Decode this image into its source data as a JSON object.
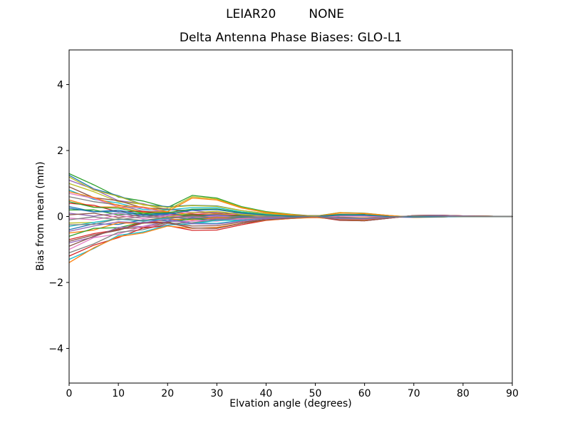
{
  "figure": {
    "suptitle_left": "LEIAR20",
    "suptitle_right": "NONE",
    "title": "Delta Antenna Phase Biases: GLO-L1",
    "xlabel": "Elvation angle (degrees)",
    "ylabel": "Bias from mean (mm)",
    "background_color": "#ffffff",
    "axis_color": "#000000"
  },
  "chart_data": {
    "type": "line",
    "title": "Delta Antenna Phase Biases: GLO-L1",
    "suptitle": "LEIAR20         NONE",
    "xlabel": "Elvation angle (degrees)",
    "ylabel": "Bias from mean (mm)",
    "xlim": [
      0,
      90
    ],
    "ylim": [
      -5.05,
      5.05
    ],
    "xticks": [
      0,
      10,
      20,
      30,
      40,
      50,
      60,
      70,
      80,
      90
    ],
    "yticks": [
      -4,
      -2,
      0,
      2,
      4
    ],
    "grid": false,
    "legend_position": "none",
    "x": [
      0,
      5,
      10,
      15,
      20,
      25,
      30,
      35,
      40,
      45,
      50,
      55,
      60,
      65,
      70,
      75,
      80,
      85,
      90
    ],
    "series": [
      {
        "color": "#2ca02c",
        "values": [
          1.3,
          0.96,
          0.59,
          0.47,
          0.27,
          0.64,
          0.56,
          0.3,
          0.15,
          0.07,
          0.01,
          0.12,
          0.1,
          0.03,
          -0.02,
          -0.02,
          0.01,
          0.01,
          0
        ]
      },
      {
        "color": "#1f77b4",
        "values": [
          1.25,
          0.84,
          0.63,
          0.36,
          0.3,
          0.34,
          0.32,
          0.18,
          0.09,
          0.04,
          0.02,
          0.07,
          0.06,
          0.01,
          -0.01,
          0,
          0,
          0,
          0
        ]
      },
      {
        "color": "#9467bd",
        "values": [
          1.1,
          0.83,
          0.48,
          0.39,
          0.2,
          0.19,
          0.09,
          0.11,
          0.04,
          0.05,
          0.02,
          0.05,
          0.03,
          0,
          -0.01,
          0,
          0.01,
          0,
          0
        ]
      },
      {
        "color": "#bcbd22",
        "values": [
          1.0,
          0.75,
          0.45,
          0.37,
          0.2,
          0.6,
          0.53,
          0.28,
          0.13,
          0.06,
          0,
          0.12,
          0.09,
          0.03,
          -0.02,
          -0.02,
          0.01,
          0.01,
          0
        ]
      },
      {
        "color": "#8c564b",
        "values": [
          0.9,
          0.57,
          0.48,
          0.26,
          0.23,
          0.12,
          0.12,
          0.05,
          0.06,
          0.02,
          0.03,
          -0.02,
          -0.04,
          -0.01,
          0.02,
          0.01,
          0,
          0,
          0
        ]
      },
      {
        "color": "#17becf",
        "values": [
          0.8,
          0.52,
          0.41,
          0.21,
          0.2,
          0.27,
          0.27,
          0.14,
          0.07,
          0.03,
          0.01,
          0.06,
          0.05,
          0.01,
          -0.02,
          -0.01,
          0,
          0,
          0
        ]
      },
      {
        "color": "#e377c2",
        "values": [
          0.7,
          0.55,
          0.29,
          0.26,
          0.11,
          0.13,
          0.05,
          0.08,
          0.02,
          0.04,
          0.01,
          0.04,
          0.03,
          0,
          -0.01,
          0,
          0.01,
          0,
          0
        ]
      },
      {
        "color": "#7f7f7f",
        "values": [
          0.6,
          0.45,
          0.35,
          0.16,
          0.15,
          -0.06,
          -0.11,
          -0.05,
          -0.01,
          0.01,
          0.03,
          -0.05,
          -0.07,
          -0.03,
          0.02,
          0.03,
          0.01,
          0,
          0
        ]
      },
      {
        "color": "#ff7f0e",
        "values": [
          0.5,
          0.29,
          0.29,
          0.13,
          0.14,
          0.06,
          0.08,
          0.02,
          0.04,
          0.01,
          0.02,
          -0.03,
          -0.04,
          -0.02,
          0.02,
          0.01,
          0,
          0,
          0
        ]
      },
      {
        "color": "#d62728",
        "values": [
          0.4,
          0.34,
          0.14,
          0.16,
          0.05,
          0.08,
          0.01,
          0.05,
          0,
          0.02,
          0,
          0.04,
          0.03,
          -0.01,
          -0.02,
          0,
          0.01,
          0,
          0
        ]
      },
      {
        "color": "#1f77b4",
        "values": [
          0.3,
          0.15,
          0.19,
          0.06,
          0.1,
          0.03,
          0.05,
          0,
          0.03,
          0,
          0.02,
          -0.03,
          -0.05,
          -0.02,
          0.02,
          0.01,
          0,
          0,
          0
        ]
      },
      {
        "color": "#2ca02c",
        "values": [
          0.2,
          0.2,
          0.05,
          0.1,
          0,
          0.05,
          -0.01,
          0.04,
          -0.01,
          0.02,
          -0.01,
          0.03,
          0.02,
          -0.01,
          -0.02,
          0,
          0.01,
          0,
          0
        ]
      },
      {
        "color": "#9467bd",
        "values": [
          0.1,
          0.01,
          0.1,
          -0.01,
          0.05,
          -0.01,
          0.03,
          -0.01,
          0.02,
          -0.01,
          0.01,
          -0.04,
          -0.05,
          -0.02,
          0.02,
          0.01,
          0,
          0,
          0
        ]
      },
      {
        "color": "#8c564b",
        "values": [
          0.05,
          0.1,
          -0.03,
          0.05,
          -0.03,
          0.03,
          -0.02,
          0.02,
          -0.02,
          0.01,
          -0.01,
          0.03,
          0.02,
          -0.01,
          -0.02,
          0,
          0.01,
          0,
          0
        ]
      },
      {
        "color": "#e377c2",
        "values": [
          -0.05,
          -0.1,
          0.03,
          -0.06,
          0.02,
          -0.03,
          0.01,
          -0.02,
          0.01,
          -0.01,
          0.01,
          -0.04,
          -0.05,
          -0.02,
          0.02,
          0.01,
          0,
          0,
          0
        ]
      },
      {
        "color": "#7f7f7f",
        "values": [
          -0.1,
          -0.01,
          -0.1,
          0,
          -0.06,
          0.01,
          -0.04,
          0.01,
          -0.03,
          0.01,
          -0.01,
          0.03,
          0.02,
          -0.01,
          -0.02,
          0,
          0.01,
          0,
          0
        ]
      },
      {
        "color": "#bcbd22",
        "values": [
          -0.2,
          -0.18,
          -0.07,
          -0.12,
          -0.02,
          0.12,
          0.16,
          0.06,
          0.02,
          -0.01,
          -0.02,
          0.05,
          0.04,
          0,
          -0.02,
          -0.01,
          0,
          0,
          0
        ]
      },
      {
        "color": "#17becf",
        "values": [
          -0.3,
          -0.18,
          -0.08,
          -0.14,
          -0.05,
          -0.2,
          -0.21,
          -0.12,
          -0.06,
          -0.02,
          0,
          -0.07,
          -0.08,
          -0.03,
          0.02,
          0.03,
          0.01,
          0,
          0
        ]
      },
      {
        "color": "#1f77b4",
        "values": [
          -0.4,
          -0.22,
          -0.24,
          -0.1,
          -0.13,
          -0.04,
          -0.07,
          -0.01,
          -0.04,
          0,
          -0.02,
          0.02,
          0.02,
          -0.01,
          -0.02,
          0,
          0.01,
          0,
          0
        ]
      },
      {
        "color": "#ff7f0e",
        "values": [
          -0.5,
          -0.41,
          -0.19,
          -0.21,
          -0.08,
          -0.1,
          -0.04,
          -0.06,
          -0.02,
          -0.03,
          0,
          -0.05,
          -0.06,
          -0.02,
          0.02,
          0.01,
          0,
          0,
          0
        ]
      },
      {
        "color": "#2ca02c",
        "values": [
          -0.6,
          -0.36,
          -0.34,
          -0.17,
          -0.17,
          -0.07,
          -0.1,
          -0.03,
          -0.05,
          -0.01,
          -0.03,
          0.02,
          0.01,
          -0.01,
          -0.02,
          0,
          0.01,
          0,
          0
        ]
      },
      {
        "color": "#d62728",
        "values": [
          -0.7,
          -0.52,
          -0.4,
          -0.18,
          -0.17,
          -0.35,
          -0.36,
          -0.21,
          -0.1,
          -0.04,
          0,
          -0.11,
          -0.13,
          -0.05,
          0.03,
          0.04,
          0.02,
          0.01,
          0
        ]
      },
      {
        "color": "#9467bd",
        "values": [
          -0.8,
          -0.62,
          -0.33,
          -0.3,
          -0.15,
          -0.14,
          -0.07,
          -0.08,
          -0.03,
          -0.04,
          -0.01,
          -0.05,
          -0.06,
          -0.03,
          0.02,
          0.01,
          0,
          0,
          0
        ]
      },
      {
        "color": "#8c564b",
        "values": [
          -0.9,
          -0.6,
          -0.37,
          -0.34,
          -0.18,
          -0.29,
          -0.28,
          -0.17,
          -0.09,
          -0.04,
          -0.01,
          -0.08,
          -0.09,
          -0.04,
          0.02,
          0.03,
          0.01,
          0,
          0
        ]
      },
      {
        "color": "#e377c2",
        "values": [
          -1.0,
          -0.64,
          -0.53,
          -0.3,
          -0.26,
          -0.13,
          -0.14,
          -0.06,
          -0.07,
          -0.03,
          -0.04,
          0.01,
          0.01,
          -0.02,
          -0.03,
          0,
          0.01,
          0,
          0
        ]
      },
      {
        "color": "#7f7f7f",
        "values": [
          -1.1,
          -0.83,
          -0.48,
          -0.4,
          -0.21,
          -0.19,
          -0.1,
          -0.11,
          -0.05,
          -0.05,
          -0.02,
          -0.06,
          -0.06,
          -0.03,
          0.02,
          0.01,
          0,
          0,
          0
        ]
      },
      {
        "color": "#d62728",
        "values": [
          -1.2,
          -0.87,
          -0.64,
          -0.35,
          -0.28,
          -0.42,
          -0.41,
          -0.25,
          -0.12,
          -0.06,
          -0.01,
          -0.12,
          -0.13,
          -0.05,
          0.03,
          0.04,
          0.02,
          0.01,
          0
        ]
      },
      {
        "color": "#17becf",
        "values": [
          -1.3,
          -0.97,
          -0.57,
          -0.47,
          -0.26,
          -0.22,
          -0.12,
          -0.12,
          -0.06,
          -0.06,
          -0.02,
          -0.06,
          -0.07,
          -0.03,
          0.01,
          0.01,
          0,
          0,
          0
        ]
      },
      {
        "color": "#ff7f0e",
        "values": [
          -1.4,
          -0.95,
          -0.61,
          -0.5,
          -0.29,
          -0.36,
          -0.33,
          -0.21,
          -0.11,
          -0.06,
          -0.03,
          -0.09,
          -0.1,
          -0.04,
          0.01,
          0.03,
          0.01,
          0,
          0
        ]
      },
      {
        "color": "#bcbd22",
        "values": [
          1.2,
          0.8,
          0.61,
          0.35,
          0.28,
          0.33,
          0.31,
          0.18,
          0.09,
          0.04,
          0.02,
          0.07,
          0.05,
          0.01,
          -0.01,
          0,
          0,
          0,
          0
        ]
      },
      {
        "color": "#ff7f0e",
        "values": [
          0.75,
          0.58,
          0.33,
          0.29,
          0.15,
          0.56,
          0.5,
          0.26,
          0.12,
          0.05,
          0,
          0.11,
          0.09,
          0.03,
          -0.03,
          -0.02,
          0.01,
          0.01,
          0
        ]
      },
      {
        "color": "#8c564b",
        "values": [
          -0.75,
          -0.56,
          -0.42,
          -0.2,
          -0.19,
          -0.35,
          -0.36,
          -0.21,
          -0.1,
          -0.05,
          0,
          -0.11,
          -0.13,
          -0.05,
          0.03,
          0.04,
          0.02,
          0.01,
          0
        ]
      },
      {
        "color": "#2ca02c",
        "values": [
          0.45,
          0.28,
          0.25,
          0.1,
          0.12,
          0.22,
          0.23,
          0.12,
          0.05,
          0.02,
          0,
          0.06,
          0.05,
          0,
          -0.02,
          -0.01,
          0,
          0,
          0
        ]
      },
      {
        "color": "#9467bd",
        "values": [
          -0.45,
          -0.29,
          -0.16,
          -0.19,
          -0.08,
          -0.22,
          -0.23,
          -0.14,
          -0.06,
          -0.03,
          0,
          -0.07,
          -0.08,
          -0.03,
          0.02,
          0.03,
          0.01,
          0,
          0
        ]
      },
      {
        "color": "#1f77b4",
        "values": [
          0.25,
          0.14,
          0.15,
          0.03,
          0.08,
          0.19,
          0.21,
          0.1,
          0.04,
          0.01,
          0,
          0.05,
          0.04,
          0,
          -0.02,
          -0.01,
          0,
          0,
          0
        ]
      },
      {
        "color": "#7f7f7f",
        "values": [
          -0.25,
          -0.24,
          -0.07,
          -0.12,
          -0.03,
          -0.06,
          -0.01,
          -0.04,
          0,
          -0.02,
          0,
          -0.04,
          -0.05,
          -0.02,
          0.02,
          0.01,
          0,
          0,
          0
        ]
      }
    ]
  }
}
